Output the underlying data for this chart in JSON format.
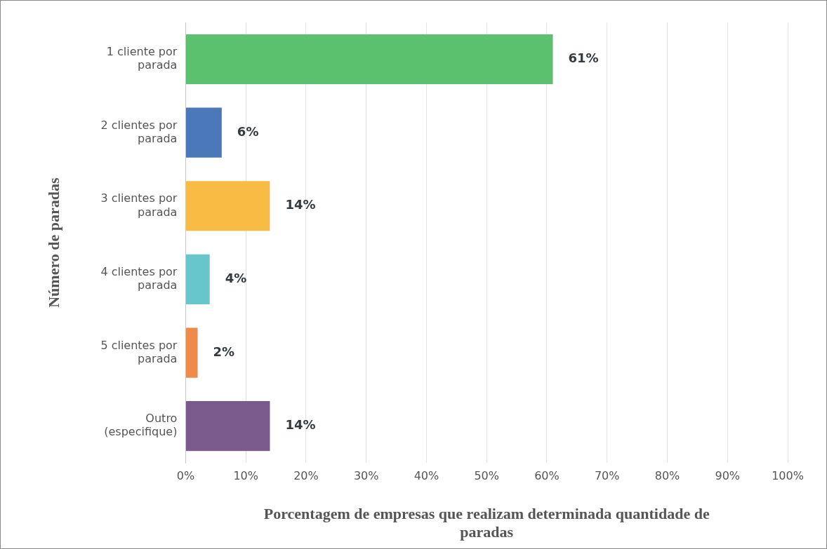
{
  "chart_data": {
    "type": "bar",
    "orientation": "horizontal",
    "xlabel": "Porcentagem de empresas que realizam determinada quantidade de paradas",
    "ylabel": "Número de paradas",
    "categories": [
      "1 cliente por parada",
      "2 clientes por parada",
      "3 clientes por parada",
      "4 clientes por parada",
      "5 clientes por parada",
      "Outro (especifique)"
    ],
    "values": [
      61,
      6,
      14,
      4,
      2,
      14
    ],
    "value_labels": [
      "61%",
      "6%",
      "14%",
      "4%",
      "2%",
      "14%"
    ],
    "colors": [
      "#5bc16f",
      "#4a78b8",
      "#f8bb43",
      "#66c6cb",
      "#f08a4b",
      "#7b5b8e"
    ],
    "xlim": [
      0,
      100
    ],
    "xticks": [
      {
        "value": 0,
        "label": "0%"
      },
      {
        "value": 10,
        "label": "10%"
      },
      {
        "value": 20,
        "label": "20%"
      },
      {
        "value": 30,
        "label": "30%"
      },
      {
        "value": 40,
        "label": "40%"
      },
      {
        "value": 50,
        "label": "50%"
      },
      {
        "value": 60,
        "label": "60%"
      },
      {
        "value": 70,
        "label": "70%"
      },
      {
        "value": 80,
        "label": "80%"
      },
      {
        "value": 90,
        "label": "90%"
      },
      {
        "value": 100,
        "label": "100%"
      }
    ],
    "grid": "x"
  }
}
